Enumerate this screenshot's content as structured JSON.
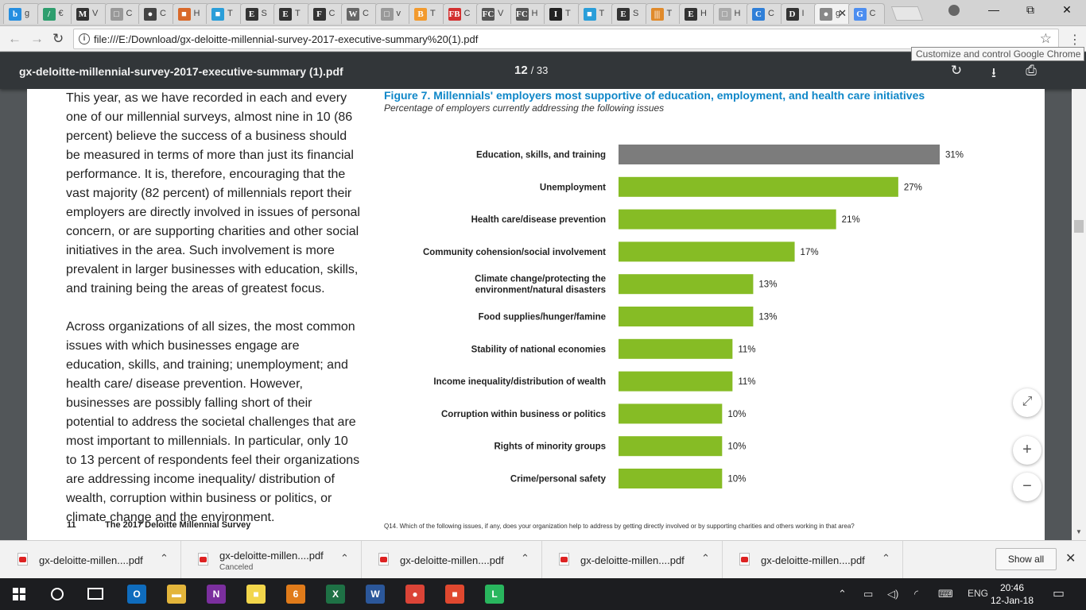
{
  "tabs": [
    {
      "glyph": "b",
      "title": "g",
      "color": "#258ee0"
    },
    {
      "glyph": "/",
      "title": "€",
      "color": "#2e9e6e"
    },
    {
      "glyph": "M",
      "title": "V",
      "color": "#333333"
    },
    {
      "glyph": "□",
      "title": "C",
      "color": "#999999"
    },
    {
      "glyph": "●",
      "title": "C",
      "color": "#444444"
    },
    {
      "glyph": "■",
      "title": "H",
      "color": "#d9692a"
    },
    {
      "glyph": "■",
      "title": "T",
      "color": "#2a9ed9"
    },
    {
      "glyph": "E",
      "title": "S",
      "color": "#333333"
    },
    {
      "glyph": "E",
      "title": "T",
      "color": "#333333"
    },
    {
      "glyph": "F",
      "title": "C",
      "color": "#333333"
    },
    {
      "glyph": "W",
      "title": "C",
      "color": "#666666"
    },
    {
      "glyph": "□",
      "title": "v",
      "color": "#999999"
    },
    {
      "glyph": "B",
      "title": "T",
      "color": "#f29a2e"
    },
    {
      "glyph": "FB",
      "title": "C",
      "color": "#d32f2f"
    },
    {
      "glyph": "FC",
      "title": "V",
      "color": "#555555"
    },
    {
      "glyph": "FC",
      "title": "H",
      "color": "#555555"
    },
    {
      "glyph": "I",
      "title": "T",
      "color": "#222222"
    },
    {
      "glyph": "■",
      "title": "T",
      "color": "#2a9ed9"
    },
    {
      "glyph": "E",
      "title": "S",
      "color": "#333333"
    },
    {
      "glyph": "|||",
      "title": "T",
      "color": "#e08a2b"
    },
    {
      "glyph": "E",
      "title": "H",
      "color": "#333333"
    },
    {
      "glyph": "□",
      "title": "H",
      "color": "#aaaaaa"
    },
    {
      "glyph": "C",
      "title": "C",
      "color": "#2f7fd8"
    },
    {
      "glyph": "D",
      "title": "I",
      "color": "#333333"
    },
    {
      "glyph": "●",
      "title": "g",
      "color": "#888888",
      "active": true
    },
    {
      "glyph": "G",
      "title": "C",
      "color": "#4d8ef0"
    }
  ],
  "window_controls": {
    "minimize": "—",
    "maximize": "⧉",
    "close": "✕"
  },
  "toolbar": {
    "back": "←",
    "forward": "→",
    "reload": "↻",
    "info_icon": "i",
    "url": "file:///E:/Download/gx-deloitte-millennial-survey-2017-executive-summary%20(1).pdf",
    "star": "☆",
    "menu": "⋮",
    "tooltip": "Customize and control Google Chrome"
  },
  "pdf": {
    "filename": "gx-deloitte-millennial-survey-2017-executive-summary (1).pdf",
    "page_current": "12",
    "page_sep_total": "/ 33",
    "rotate_icon": "↻",
    "download_icon": "⭳",
    "print_icon": "⎙"
  },
  "page": {
    "paragraphs": [
      "This year, as we have recorded in each and every one of our millennial surveys, almost nine in 10 (86 percent) believe the success of a business should be measured in terms of more than just its financial performance. It is, therefore, encouraging that the vast majority (82 percent) of millennials report their employers are directly involved in issues of personal concern, or are supporting charities and other social initiatives in the area. Such involvement is more prevalent in larger businesses with education, skills, and training being the areas of greatest focus.",
      "Across organizations of all sizes, the most common issues with which businesses engage are education, skills, and training; unemployment; and health care/ disease prevention. However, businesses are possibly falling short of their potential to address the societal challenges that are most important to millennials. In particular, only 10 to 13 percent of respondents feel their organizations are addressing income inequality/ distribution of wealth, corruption within business or politics, or climate change and the environment."
    ],
    "figure_title": "Figure 7. Millennials' employers most supportive of education, employment, and health care initiatives",
    "figure_subtitle": "Percentage of employers currently addressing the following issues",
    "footer_page": "11",
    "footer_title": "The 2017 Deloitte Millennial Survey",
    "footer_question": "Q14. Which of the following issues, if any, does your organization help to address by getting directly involved or by supporting charities and others working in that area?"
  },
  "chart_data": {
    "type": "bar",
    "orientation": "horizontal",
    "categories": [
      [
        "Education, skills, and training"
      ],
      [
        "Unemployment"
      ],
      [
        "Health care/disease prevention"
      ],
      [
        "Community cohension/social involvement"
      ],
      [
        "Climate change/protecting the",
        "environment/natural disasters"
      ],
      [
        "Food supplies/hunger/famine"
      ],
      [
        "Stability of national economies"
      ],
      [
        "Income inequality/distribution of wealth"
      ],
      [
        "Corruption within business or politics"
      ],
      [
        "Rights of minority groups"
      ],
      [
        "Crime/personal safety"
      ]
    ],
    "values": [
      31,
      27,
      21,
      17,
      13,
      13,
      11,
      11,
      10,
      10,
      10
    ],
    "value_labels": [
      "31%",
      "27%",
      "21%",
      "17%",
      "13%",
      "13%",
      "11%",
      "11%",
      "10%",
      "10%",
      "10%"
    ],
    "colors": {
      "highlight": "#7c7c7c",
      "default": "#86bc25"
    },
    "highlight_index": 0,
    "xlim": [
      0,
      31
    ],
    "grid": false
  },
  "viewer_controls": {
    "fit": "⤢",
    "zoom_in": "+",
    "zoom_out": "−"
  },
  "downloads": [
    {
      "name": "gx-deloitte-millen....pdf",
      "status": ""
    },
    {
      "name": "gx-deloitte-millen....pdf",
      "status": "Canceled"
    },
    {
      "name": "gx-deloitte-millen....pdf",
      "status": ""
    },
    {
      "name": "gx-deloitte-millen....pdf",
      "status": ""
    },
    {
      "name": "gx-deloitte-millen....pdf",
      "status": ""
    }
  ],
  "download_chevron": "⌃",
  "show_all": "Show all",
  "dl_close": "✕",
  "taskbar": {
    "apps": [
      {
        "glyph": "O",
        "color": "#0f6cbd"
      },
      {
        "glyph": "▬",
        "color": "#e3b53b"
      },
      {
        "glyph": "N",
        "color": "#7b2f9e"
      },
      {
        "glyph": "■",
        "color": "#f2d64b"
      },
      {
        "glyph": "6",
        "color": "#e07b1a"
      },
      {
        "glyph": "X",
        "color": "#1e7145"
      },
      {
        "glyph": "W",
        "color": "#2b579a"
      },
      {
        "glyph": "●",
        "color": "#db4437"
      },
      {
        "glyph": "■",
        "color": "#e0482f"
      },
      {
        "glyph": "L",
        "color": "#29b65e"
      }
    ],
    "lang": "ENG",
    "time": "20:46",
    "date": "12-Jan-18"
  }
}
